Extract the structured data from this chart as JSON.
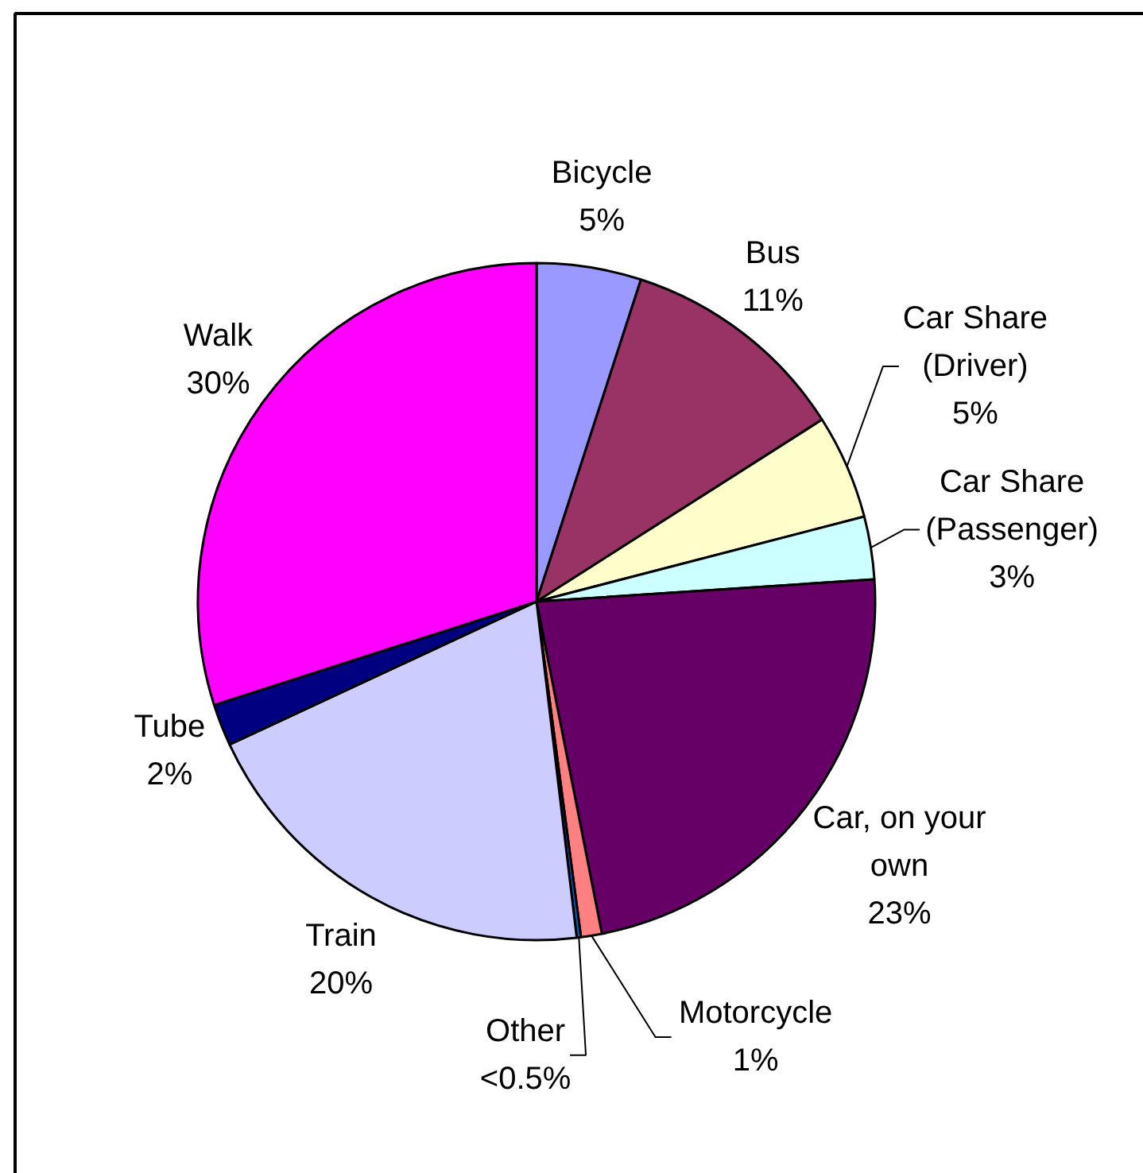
{
  "chart_data": {
    "type": "pie",
    "categories": [
      "Bicycle",
      "Bus",
      "Car Share (Driver)",
      "Car Share (Passenger)",
      "Car, on your own",
      "Motorcycle",
      "Other",
      "Train",
      "Tube",
      "Walk"
    ],
    "values": [
      5,
      11,
      5,
      3,
      23,
      1,
      0.2,
      20,
      2,
      30
    ],
    "colors": [
      "#9999ff",
      "#993366",
      "#ffffcc",
      "#ccffff",
      "#660066",
      "#ff8080",
      "#0066cc",
      "#ccccff",
      "#000080",
      "#ff00ff"
    ],
    "value_labels": [
      "5%",
      "11%",
      "5%",
      "3%",
      "23%",
      "1%",
      "<0.5%",
      "20%",
      "2%",
      "30%"
    ]
  }
}
